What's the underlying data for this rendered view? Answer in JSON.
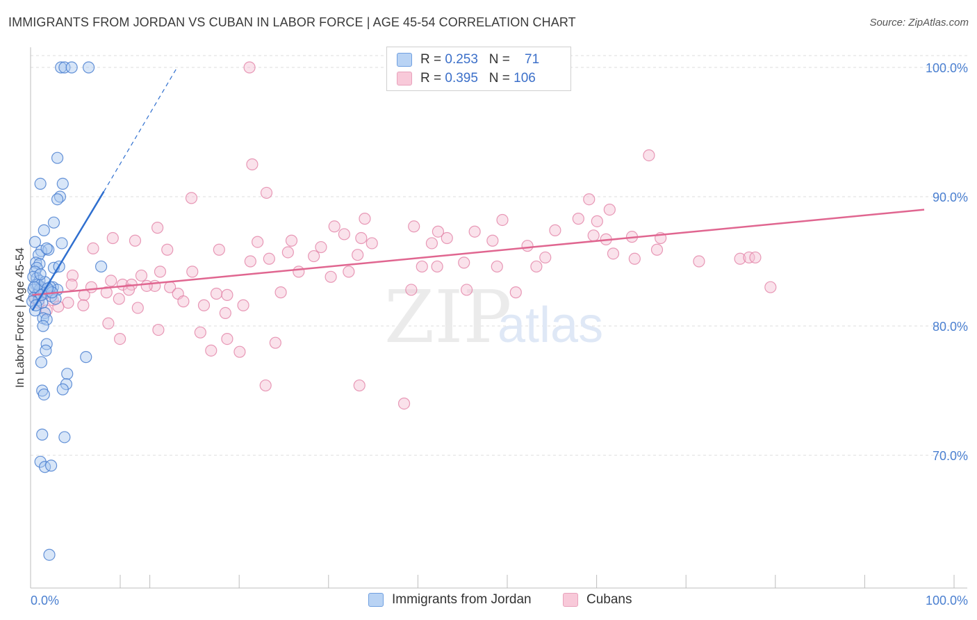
{
  "title": "IMMIGRANTS FROM JORDAN VS CUBAN IN LABOR FORCE | AGE 45-54 CORRELATION CHART",
  "source": "Source: ZipAtlas.com",
  "watermark": {
    "zip": "ZIP",
    "atlas": "atlas"
  },
  "colors": {
    "blue": "#4a7fd0",
    "blue_fill": "#a9c8f0",
    "blue_line": "#2f6fcf",
    "pink": "#e07aa0",
    "pink_fill": "#f5bfd2",
    "pink_line": "#e06690",
    "grid": "#dcdcdc"
  },
  "legend": {
    "rows": [
      {
        "r_label": "R =",
        "r_value": "0.253",
        "n_label": "N =",
        "n_value": "71"
      },
      {
        "r_label": "R =",
        "r_value": "0.395",
        "n_label": "N =",
        "n_value": "106"
      }
    ]
  },
  "bottom_legend": [
    "Immigrants from Jordan",
    "Cubans"
  ],
  "chart_data": {
    "type": "scatter",
    "title": "IMMIGRANTS FROM JORDAN VS CUBAN IN LABOR FORCE | AGE 45-54 CORRELATION CHART",
    "xlabel": "",
    "ylabel": "In Labor Force | Age 45-54",
    "xlim": [
      0,
      100
    ],
    "ylim": [
      60.5,
      102
    ],
    "x_tick_labels": [
      "0.0%",
      "100.0%"
    ],
    "y_ticks": [
      70,
      80,
      90,
      100
    ],
    "y_tick_labels": [
      "70.0%",
      "80.0%",
      "90.0%",
      "100.0%"
    ],
    "series": [
      {
        "name": "Immigrants from Jordan",
        "r": 0.253,
        "n": 71,
        "trend": {
          "x0": 0.2,
          "y0": 81.2,
          "x1": 8.2,
          "y1": 90.4,
          "dash_to_x": 16.4,
          "dash_to_y": 100.0
        },
        "points": [
          [
            3.4,
            100
          ],
          [
            3.8,
            100
          ],
          [
            4.6,
            100
          ],
          [
            6.5,
            100
          ],
          [
            3.0,
            93
          ],
          [
            1.1,
            91
          ],
          [
            3.6,
            91
          ],
          [
            3.3,
            90
          ],
          [
            3.0,
            89.8
          ],
          [
            2.6,
            88
          ],
          [
            1.5,
            87.4
          ],
          [
            3.5,
            86.4
          ],
          [
            0.5,
            86.5
          ],
          [
            1.2,
            85.8
          ],
          [
            2.0,
            85.9
          ],
          [
            0.9,
            85.5
          ],
          [
            1.8,
            86
          ],
          [
            0.6,
            84.9
          ],
          [
            1.0,
            84.8
          ],
          [
            0.7,
            84.5
          ],
          [
            2.6,
            84.5
          ],
          [
            3.2,
            84.6
          ],
          [
            7.9,
            84.6
          ],
          [
            0.5,
            84.2
          ],
          [
            0.7,
            83.7
          ],
          [
            1.0,
            83.5
          ],
          [
            0.6,
            83.2
          ],
          [
            1.2,
            83.0
          ],
          [
            2.5,
            83.0
          ],
          [
            0.3,
            82.8
          ],
          [
            0.8,
            82.5
          ],
          [
            1.5,
            82.5
          ],
          [
            2.1,
            82.7
          ],
          [
            0.4,
            82.2
          ],
          [
            0.9,
            82.0
          ],
          [
            1.3,
            81.8
          ],
          [
            2.3,
            82.3
          ],
          [
            0.2,
            81.9
          ],
          [
            1.6,
            81.0
          ],
          [
            0.5,
            81.2
          ],
          [
            1.4,
            80.6
          ],
          [
            1.8,
            80.5
          ],
          [
            1.4,
            80.0
          ],
          [
            1.8,
            78.6
          ],
          [
            1.7,
            78.1
          ],
          [
            6.2,
            77.6
          ],
          [
            1.2,
            77.2
          ],
          [
            4.1,
            76.3
          ],
          [
            4.0,
            75.5
          ],
          [
            3.6,
            75.1
          ],
          [
            1.3,
            75.0
          ],
          [
            1.5,
            74.7
          ],
          [
            1.3,
            71.6
          ],
          [
            3.8,
            71.4
          ],
          [
            1.1,
            69.5
          ],
          [
            1.6,
            69.1
          ],
          [
            2.3,
            69.2
          ],
          [
            2.1,
            62.3
          ],
          [
            3.0,
            82.8
          ],
          [
            1.0,
            82.8
          ],
          [
            2.2,
            83.0
          ],
          [
            0.8,
            83.2
          ],
          [
            1.2,
            82.4
          ],
          [
            0.3,
            83.8
          ],
          [
            2.8,
            82.1
          ],
          [
            1.6,
            83.4
          ],
          [
            0.6,
            81.6
          ],
          [
            2.4,
            82.6
          ],
          [
            1.9,
            82.9
          ],
          [
            0.4,
            83.0
          ],
          [
            1.1,
            84.0
          ]
        ]
      },
      {
        "name": "Cubans",
        "r": 0.395,
        "n": 106,
        "trend": {
          "x0": 0.2,
          "y0": 82.4,
          "x1": 100,
          "y1": 89.0
        },
        "points": [
          [
            24.5,
            100
          ],
          [
            24.8,
            92.5
          ],
          [
            69.2,
            93.2
          ],
          [
            26.4,
            90.3
          ],
          [
            18.0,
            89.9
          ],
          [
            62.5,
            89.8
          ],
          [
            64.8,
            89.0
          ],
          [
            37.4,
            88.3
          ],
          [
            52.8,
            88.2
          ],
          [
            61.3,
            88.3
          ],
          [
            63.4,
            88.1
          ],
          [
            14.2,
            87.6
          ],
          [
            34.0,
            87.7
          ],
          [
            42.9,
            87.7
          ],
          [
            45.6,
            87.3
          ],
          [
            49.7,
            87.3
          ],
          [
            58.7,
            87.4
          ],
          [
            63.0,
            87.0
          ],
          [
            35.1,
            87.1
          ],
          [
            37.0,
            86.8
          ],
          [
            46.6,
            86.8
          ],
          [
            51.7,
            86.6
          ],
          [
            67.3,
            86.9
          ],
          [
            70.5,
            86.8
          ],
          [
            9.2,
            86.8
          ],
          [
            11.7,
            86.6
          ],
          [
            25.4,
            86.5
          ],
          [
            29.2,
            86.6
          ],
          [
            21.1,
            85.9
          ],
          [
            32.5,
            86.1
          ],
          [
            38.2,
            86.4
          ],
          [
            44.9,
            86.4
          ],
          [
            55.6,
            86.2
          ],
          [
            64.4,
            86.7
          ],
          [
            70.1,
            85.9
          ],
          [
            7.0,
            86.0
          ],
          [
            15.3,
            85.9
          ],
          [
            28.8,
            85.7
          ],
          [
            36.6,
            85.5
          ],
          [
            26.7,
            85.2
          ],
          [
            24.6,
            85.0
          ],
          [
            31.7,
            85.4
          ],
          [
            57.6,
            85.3
          ],
          [
            48.5,
            84.9
          ],
          [
            65.2,
            85.6
          ],
          [
            67.6,
            85.2
          ],
          [
            79.4,
            85.2
          ],
          [
            80.4,
            85.3
          ],
          [
            81.1,
            85.3
          ],
          [
            74.8,
            85.0
          ],
          [
            43.8,
            84.6
          ],
          [
            45.5,
            84.6
          ],
          [
            52.2,
            84.6
          ],
          [
            56.6,
            84.6
          ],
          [
            14.5,
            84.2
          ],
          [
            18.1,
            84.2
          ],
          [
            30.0,
            84.2
          ],
          [
            33.6,
            83.8
          ],
          [
            35.6,
            84.2
          ],
          [
            12.4,
            83.9
          ],
          [
            4.7,
            83.9
          ],
          [
            9.0,
            83.5
          ],
          [
            10.3,
            83.2
          ],
          [
            13.9,
            83.1
          ],
          [
            13.0,
            83.1
          ],
          [
            15.6,
            83.0
          ],
          [
            11.3,
            83.2
          ],
          [
            6.8,
            83.0
          ],
          [
            20.8,
            82.5
          ],
          [
            22.0,
            82.4
          ],
          [
            28.0,
            82.6
          ],
          [
            42.6,
            82.8
          ],
          [
            48.8,
            82.8
          ],
          [
            54.3,
            82.6
          ],
          [
            82.8,
            83.0
          ],
          [
            6.0,
            82.4
          ],
          [
            8.5,
            82.6
          ],
          [
            11.0,
            82.8
          ],
          [
            1.6,
            82.5
          ],
          [
            2.5,
            82.0
          ],
          [
            9.9,
            82.1
          ],
          [
            16.5,
            82.5
          ],
          [
            17.1,
            81.9
          ],
          [
            19.4,
            81.6
          ],
          [
            23.8,
            81.6
          ],
          [
            4.2,
            81.8
          ],
          [
            5.9,
            81.6
          ],
          [
            3.1,
            81.5
          ],
          [
            21.8,
            81.0
          ],
          [
            12.0,
            81.4
          ],
          [
            1.8,
            81.2
          ],
          [
            0.5,
            82.1
          ],
          [
            1.0,
            82.3
          ],
          [
            8.7,
            80.2
          ],
          [
            14.3,
            79.7
          ],
          [
            19.0,
            79.5
          ],
          [
            10.0,
            79.0
          ],
          [
            22.0,
            79.0
          ],
          [
            27.4,
            78.7
          ],
          [
            20.2,
            78.1
          ],
          [
            23.4,
            78.0
          ],
          [
            26.3,
            75.4
          ],
          [
            36.8,
            75.4
          ],
          [
            41.8,
            74.0
          ],
          [
            4.6,
            83.2
          ],
          [
            0.9,
            81.8
          ]
        ]
      }
    ]
  }
}
